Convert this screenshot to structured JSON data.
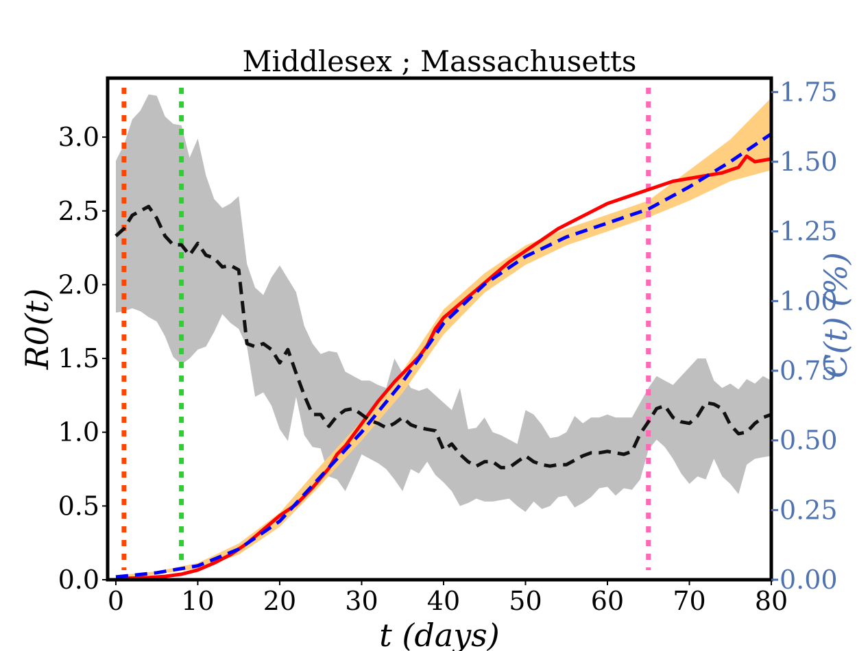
{
  "chart_data": {
    "type": "line",
    "title": "Middlesex ; Massachusetts",
    "xlabel": "t (days)",
    "ylabel_left": "R0(t)",
    "ylabel_right": "C(t) (%)",
    "xlim": [
      -1,
      80
    ],
    "ylim_left": [
      0,
      3.4
    ],
    "ylim_right": [
      0,
      1.8
    ],
    "x_ticks": [
      0,
      10,
      20,
      30,
      40,
      50,
      60,
      70,
      80
    ],
    "y_ticks_left": [
      "0.0",
      "0.5",
      "1.0",
      "1.5",
      "2.0",
      "2.5",
      "3.0"
    ],
    "y_ticks_right": [
      "0.00",
      "0.25",
      "0.50",
      "0.75",
      "1.00",
      "1.25",
      "1.50",
      "1.75"
    ],
    "vertical_lines": [
      {
        "x": 1,
        "color": "#ff4500"
      },
      {
        "x": 8,
        "color": "#32cd32"
      },
      {
        "x": 65,
        "color": "#ff69b4"
      }
    ],
    "series": [
      {
        "axis": "left",
        "style": "dashed",
        "color": "#111111",
        "band_color": "#bfbfbf",
        "x": [
          0,
          1,
          2,
          3,
          4,
          5,
          6,
          7,
          8,
          9,
          10,
          11,
          12,
          13,
          14,
          15,
          16,
          17,
          18,
          19,
          20,
          21,
          22,
          23,
          24,
          25,
          26,
          27,
          28,
          29,
          30,
          31,
          32,
          33,
          34,
          35,
          36,
          37,
          38,
          39,
          40,
          41,
          42,
          43,
          44,
          45,
          46,
          47,
          48,
          49,
          50,
          51,
          52,
          53,
          54,
          55,
          56,
          57,
          58,
          59,
          60,
          61,
          62,
          63,
          64,
          65,
          66,
          67,
          68,
          69,
          70,
          71,
          72,
          73,
          74,
          75,
          76,
          77,
          78,
          79,
          80
        ],
        "values": [
          2.33,
          2.38,
          2.47,
          2.5,
          2.53,
          2.45,
          2.33,
          2.27,
          2.27,
          2.2,
          2.28,
          2.2,
          2.18,
          2.12,
          2.13,
          2.1,
          1.6,
          1.58,
          1.6,
          1.56,
          1.47,
          1.56,
          1.4,
          1.25,
          1.12,
          1.12,
          1.04,
          1.11,
          1.15,
          1.16,
          1.12,
          1.08,
          1.06,
          1.03,
          1.06,
          1.1,
          1.05,
          1.03,
          1.02,
          1.01,
          0.88,
          0.92,
          0.85,
          0.8,
          0.77,
          0.8,
          0.8,
          0.76,
          0.76,
          0.8,
          0.84,
          0.8,
          0.78,
          0.77,
          0.78,
          0.78,
          0.81,
          0.84,
          0.86,
          0.86,
          0.87,
          0.86,
          0.85,
          0.87,
          0.99,
          1.07,
          1.16,
          1.18,
          1.1,
          1.07,
          1.06,
          1.11,
          1.2,
          1.19,
          1.16,
          1.05,
          0.99,
          1.0,
          1.06,
          1.1,
          1.12
        ],
        "lower": [
          1.81,
          1.82,
          1.84,
          1.82,
          1.78,
          1.75,
          1.65,
          1.51,
          1.46,
          1.5,
          1.56,
          1.58,
          1.68,
          1.8,
          1.74,
          1.7,
          1.58,
          1.24,
          1.27,
          1.18,
          1.02,
          0.94,
          1.24,
          0.98,
          0.9,
          0.89,
          0.7,
          0.68,
          0.6,
          0.72,
          0.85,
          0.82,
          0.79,
          0.75,
          0.68,
          0.6,
          0.75,
          0.72,
          0.8,
          0.71,
          0.66,
          0.6,
          0.5,
          0.52,
          0.55,
          0.53,
          0.53,
          0.54,
          0.55,
          0.5,
          0.46,
          0.53,
          0.48,
          0.5,
          0.56,
          0.57,
          0.49,
          0.52,
          0.56,
          0.62,
          0.63,
          0.57,
          0.62,
          0.61,
          0.68,
          0.88,
          0.95,
          0.9,
          0.82,
          0.72,
          0.65,
          0.7,
          0.68,
          0.82,
          0.7,
          0.65,
          0.58,
          0.78,
          0.82,
          0.83,
          0.84
        ],
        "upper": [
          2.84,
          2.95,
          3.12,
          3.18,
          3.29,
          3.28,
          3.14,
          3.09,
          3.08,
          2.86,
          2.99,
          2.74,
          2.58,
          2.52,
          2.55,
          2.6,
          2.14,
          1.98,
          1.93,
          2.05,
          2.13,
          2.04,
          1.95,
          1.72,
          1.6,
          1.53,
          1.55,
          1.54,
          1.41,
          1.38,
          1.35,
          1.35,
          1.32,
          1.3,
          1.5,
          1.4,
          1.3,
          1.28,
          1.3,
          1.25,
          1.2,
          1.15,
          1.3,
          1.02,
          1.03,
          1.1,
          1.0,
          0.98,
          0.95,
          0.92,
          1.15,
          1.12,
          1.05,
          0.96,
          0.97,
          1.0,
          1.11,
          1.06,
          1.1,
          1.1,
          1.12,
          1.1,
          1.1,
          1.1,
          1.2,
          1.3,
          1.38,
          1.35,
          1.32,
          1.38,
          1.44,
          1.5,
          1.5,
          1.35,
          1.3,
          1.33,
          1.29,
          1.36,
          1.33,
          1.38,
          1.35
        ]
      },
      {
        "axis": "right",
        "style": "solid",
        "color": "#ff0000",
        "x": [
          0,
          2,
          4,
          6,
          8,
          10,
          12,
          14,
          16,
          18,
          20,
          22,
          24,
          26,
          27,
          28,
          30,
          32,
          34,
          36,
          37,
          38,
          39,
          40,
          42,
          44,
          46,
          48,
          50,
          52,
          54,
          56,
          58,
          60,
          62,
          64,
          66,
          68,
          70,
          72,
          74,
          76,
          77,
          78,
          80
        ],
        "values": [
          0.005,
          0.006,
          0.008,
          0.012,
          0.02,
          0.035,
          0.06,
          0.09,
          0.13,
          0.18,
          0.23,
          0.27,
          0.33,
          0.4,
          0.45,
          0.48,
          0.56,
          0.64,
          0.71,
          0.77,
          0.8,
          0.84,
          0.9,
          0.94,
          0.99,
          1.04,
          1.09,
          1.14,
          1.18,
          1.22,
          1.26,
          1.29,
          1.32,
          1.35,
          1.37,
          1.39,
          1.41,
          1.43,
          1.44,
          1.45,
          1.46,
          1.48,
          1.52,
          1.5,
          1.51
        ]
      },
      {
        "axis": "right",
        "style": "dashed",
        "color": "#0000ff",
        "band_color": "#ffcf7f",
        "x": [
          0,
          5,
          10,
          15,
          20,
          25,
          30,
          35,
          40,
          45,
          50,
          55,
          60,
          65,
          70,
          75,
          80
        ],
        "values": [
          0.01,
          0.025,
          0.05,
          0.11,
          0.21,
          0.37,
          0.53,
          0.71,
          0.92,
          1.06,
          1.16,
          1.23,
          1.28,
          1.33,
          1.41,
          1.5,
          1.6
        ],
        "lower": [
          0.005,
          0.02,
          0.04,
          0.09,
          0.19,
          0.34,
          0.5,
          0.67,
          0.88,
          1.03,
          1.13,
          1.2,
          1.25,
          1.3,
          1.36,
          1.43,
          1.47
        ],
        "upper": [
          0.015,
          0.03,
          0.06,
          0.13,
          0.24,
          0.41,
          0.57,
          0.75,
          0.97,
          1.1,
          1.2,
          1.26,
          1.31,
          1.36,
          1.47,
          1.58,
          1.73
        ]
      }
    ]
  }
}
